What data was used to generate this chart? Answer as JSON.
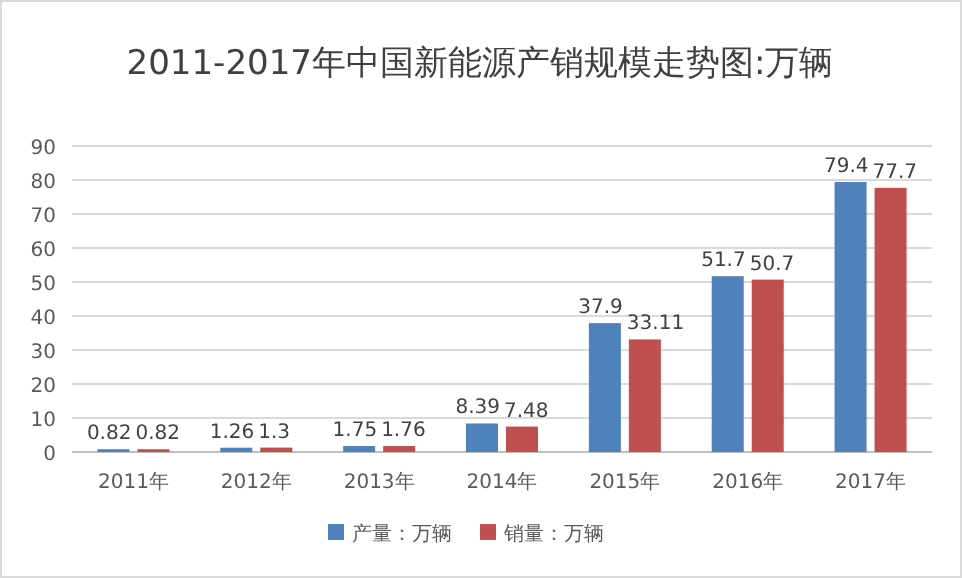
{
  "chart_data": {
    "type": "bar",
    "title": "2011-2017年中国新能源产销规模走势图:万辆",
    "categories": [
      "2011年",
      "2012年",
      "2013年",
      "2014年",
      "2015年",
      "2016年",
      "2017年"
    ],
    "series": [
      {
        "name": "产量：万辆",
        "color": "#4f81bd",
        "values": [
          0.82,
          1.26,
          1.75,
          8.39,
          37.9,
          51.7,
          79.4
        ]
      },
      {
        "name": "销量：万辆",
        "color": "#c0504d",
        "values": [
          0.82,
          1.3,
          1.76,
          7.48,
          33.11,
          50.7,
          77.7
        ]
      }
    ],
    "ylim": [
      0,
      90
    ],
    "yticks": [
      0,
      10,
      20,
      30,
      40,
      50,
      60,
      70,
      80,
      90
    ],
    "grid": "y",
    "legend": "bottom",
    "data_labels": true
  }
}
